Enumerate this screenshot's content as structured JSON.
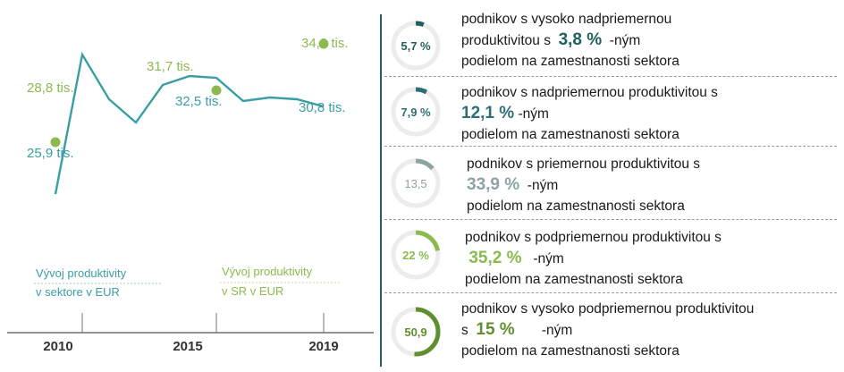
{
  "chart_data": {
    "type": "line",
    "x_ticks": [
      "2010",
      "2015",
      "2019"
    ],
    "series": [
      {
        "name": "Vývoj produktivity v sektore v EUR",
        "x": [
          2009,
          2010,
          2011,
          2012,
          2013,
          2014,
          2015,
          2016,
          2017,
          2018,
          2019
        ],
        "y": [
          25.9,
          33.7,
          31.2,
          29.9,
          32.0,
          32.5,
          32.4,
          31.1,
          31.3,
          31.2,
          30.8
        ]
      },
      {
        "name": "Vývoj produktivity v SR v EUR",
        "x": [
          2009,
          2015,
          2019
        ],
        "y": [
          28.8,
          31.7,
          34.3
        ]
      }
    ],
    "labels": [
      {
        "text": "25,9 tis.",
        "series": "sector"
      },
      {
        "text": "28,8 tis.",
        "series": "sr"
      },
      {
        "text": "31,7 tis.",
        "series": "sr"
      },
      {
        "text": "32,5 tis.",
        "series": "sector"
      },
      {
        "text": "34,3 tis.",
        "series": "sr"
      },
      {
        "text": "30,8 tis.",
        "series": "sector"
      }
    ],
    "legend": [
      {
        "line1": "Vývoj produktivity",
        "line2": "v sektore v EUR",
        "color": "#3a9ea5"
      },
      {
        "line1": "Vývoj produktivity",
        "line2": "v SR v EUR",
        "color": "#8bbb4f"
      }
    ],
    "ylim": [
      24,
      36
    ],
    "colors": {
      "sector": "#3a9ea5",
      "sr": "#8bbb4f"
    }
  },
  "categories": [
    {
      "pct_label": "5,7 %",
      "share": 0.057,
      "ring_color": "#1f5f5f",
      "value_color": "#1f5f5f",
      "line1": "podnikov s vysoko nadpriemernou",
      "line2a": "produktivitou s",
      "value": "3,8 %",
      "line2b": "-ným",
      "line3": "podielom na zamestnanosti sektora"
    },
    {
      "pct_label": "7,9 %",
      "share": 0.079,
      "ring_color": "#2e6f73",
      "value_color": "#2e6f73",
      "line1": "podnikov s nadpriemernou produktivitou s",
      "line2a": "",
      "value": "12,1 %",
      "line2b": "-ným",
      "line3": "podielom na zamestnanosti sektora"
    },
    {
      "pct_label": "13,5",
      "share": 0.135,
      "ring_color": "#8fa3a3",
      "value_color": "#8fa3a3",
      "line1": "podnikov s priemernou produktivitou s",
      "line2a": "",
      "value": "33,9 %",
      "line2b": "-ným",
      "line3": "podielom na zamestnanosti sektora"
    },
    {
      "pct_label": "22 %",
      "share": 0.22,
      "ring_color": "#8bbb4f",
      "value_color": "#8bbb4f",
      "line1": "podnikov s  podpriemernou produktivitou s",
      "line2a": "",
      "value": "35,2 %",
      "line2b": "-ným",
      "line3": "podielom na zamestnanosti sektora"
    },
    {
      "pct_label": "50,9",
      "share": 0.509,
      "ring_color": "#5f8f2f",
      "value_color": "#5f8f2f",
      "line1": "podnikov s vysoko podpriemernou produktivitou",
      "line2a": "s",
      "value": "15 %",
      "line2b": "-ným",
      "line3": "podielom na zamestnanosti sektora"
    }
  ]
}
